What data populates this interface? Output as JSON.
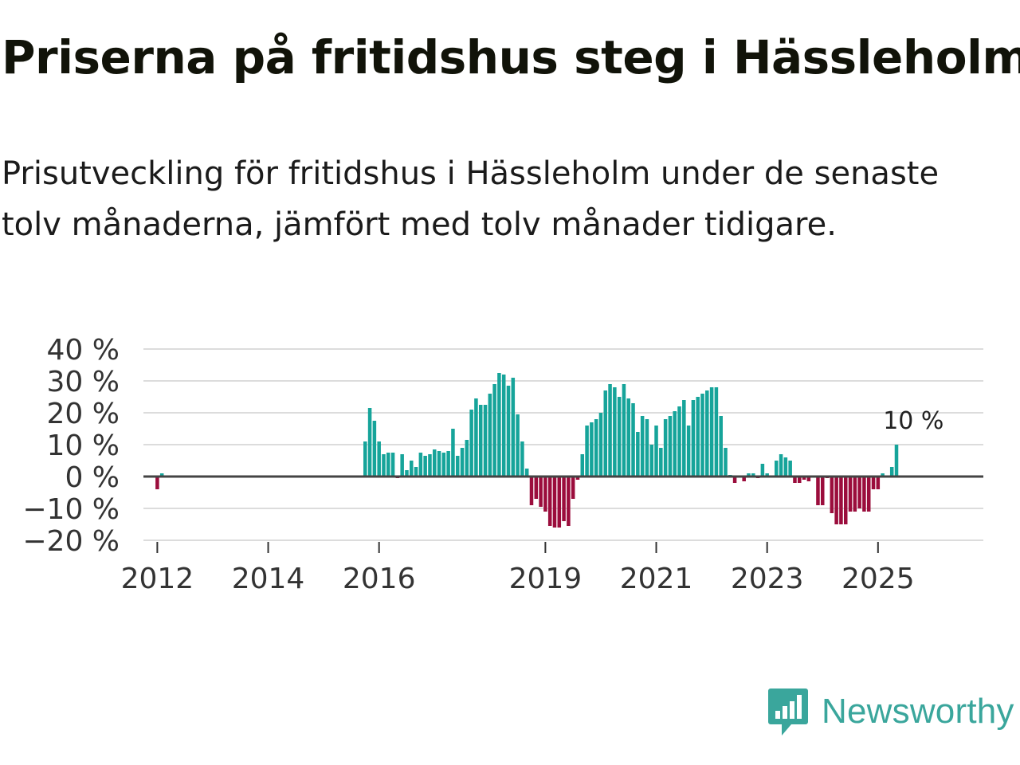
{
  "title": "Priserna på fritidshus steg i Hässleholm",
  "subtitle": "Prisutveckling för fritidshus i Hässleholm under de senaste tolv månaderna, jämfört med tolv månader tidigare.",
  "brand": {
    "name": "Newsworthy",
    "color": "#3aa69c"
  },
  "colors": {
    "positive": "#16a49a",
    "negative": "#9b0d3c",
    "grid": "#dcdcdc",
    "baseline": "#444444"
  },
  "chart_data": {
    "type": "bar",
    "title": "Priserna på fritidshus steg i Hässleholm",
    "xlabel": "",
    "ylabel": "",
    "ylim": [
      -20,
      40
    ],
    "yticks": [
      -20,
      -10,
      0,
      10,
      20,
      30,
      40
    ],
    "ytick_labels": [
      "−20 %",
      "−10 %",
      "0 %",
      "10 %",
      "20 %",
      "30 %",
      "40 %"
    ],
    "x_start": 2011.75,
    "x_end": 2026.9,
    "xticks": [
      2012,
      2014,
      2016,
      2019,
      2021,
      2023,
      2025
    ],
    "xtick_labels": [
      "2012",
      "2014",
      "2016",
      "2019",
      "2021",
      "2023",
      "2025"
    ],
    "series": [
      {
        "name": "Prisutveckling",
        "x_start": 2012.0,
        "step_months": 1,
        "values": [
          -4,
          1,
          0,
          0,
          0,
          0,
          0,
          0,
          0,
          0,
          0,
          0,
          0,
          0,
          0,
          0,
          0,
          0,
          0,
          0,
          0,
          0,
          0,
          0,
          0,
          0,
          0,
          0,
          0,
          0,
          0,
          0,
          0,
          0,
          0,
          0,
          0,
          0,
          0,
          0,
          0,
          0,
          0,
          0,
          0,
          11,
          21.5,
          17.5,
          11,
          7,
          7.5,
          7.5,
          -0.5,
          7,
          2,
          5,
          3,
          7.5,
          6.5,
          7,
          8.5,
          8,
          7.5,
          8,
          15,
          6.5,
          9,
          11.5,
          21,
          24.5,
          22.5,
          22.5,
          26,
          29,
          32.5,
          32,
          28.5,
          31,
          19.5,
          11,
          2.5,
          -9,
          -7,
          -9.5,
          -11,
          -15.5,
          -16,
          -16,
          -14,
          -15.5,
          -7,
          -1,
          7,
          16,
          17,
          18,
          20,
          27,
          29,
          28,
          25,
          29,
          24.5,
          23,
          14,
          19,
          18,
          10,
          16,
          9,
          18,
          19,
          20.5,
          22,
          24,
          16,
          24,
          25,
          26,
          27,
          28,
          28,
          19,
          9,
          0.5,
          -2,
          0,
          -1.5,
          1,
          1,
          -0.5,
          4,
          1,
          0,
          5,
          7,
          6,
          5,
          -2,
          -2,
          -1,
          -1.5,
          0,
          -9,
          -9,
          -0.5,
          -11.5,
          -15,
          -15,
          -15,
          -11,
          -11,
          -10,
          -11,
          -11,
          -4,
          -4,
          1,
          0,
          3,
          10
        ]
      }
    ],
    "annotations": [
      {
        "label": "10 %",
        "x": 2025.67,
        "y": 10
      }
    ]
  }
}
